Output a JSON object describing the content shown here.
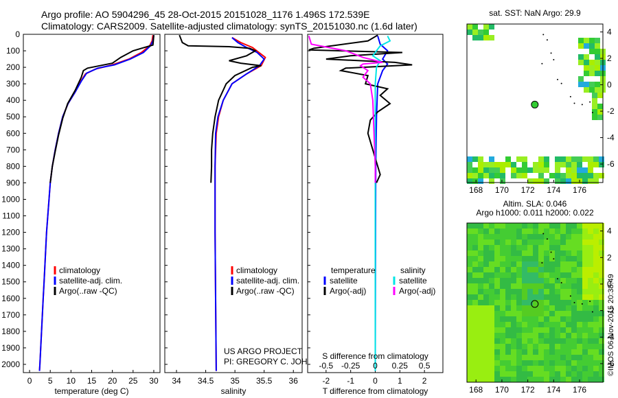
{
  "header": {
    "line1": "Argo profile: AO 5904296_45 28-Oct-2015 20151028_1176 1.496S 172.539E",
    "line2": "Climatology: CARS2009. Satellite-adjusted climatology: synTS_20151030.nc (1.6d later)"
  },
  "colors": {
    "climatology": "#ff0000",
    "satellite": "#0000ff",
    "argo": "#000000",
    "sal_satellite": "#00e5e5",
    "sal_argo": "#ff00ff"
  },
  "depth_axis": {
    "range": [
      0,
      2050
    ],
    "ticks": [
      0,
      100,
      200,
      300,
      400,
      500,
      600,
      700,
      800,
      900,
      1000,
      1100,
      1200,
      1300,
      1400,
      1500,
      1600,
      1700,
      1800,
      1900,
      2000
    ]
  },
  "chart_data": [
    {
      "type": "line",
      "id": "temperature",
      "xlabel": "temperature (deg C)",
      "xlim": [
        -1.5,
        31.5
      ],
      "xticks": [
        0,
        5,
        10,
        15,
        20,
        25,
        30
      ],
      "legend": [
        "climatology",
        "satellite-adj. clim.",
        "Argo(..raw -QC)"
      ],
      "series": [
        {
          "name": "climatology",
          "color_key": "climatology",
          "points": [
            [
              29.8,
              5
            ],
            [
              29.6,
              40
            ],
            [
              29,
              70
            ],
            [
              27,
              110
            ],
            [
              24,
              150
            ],
            [
              20,
              185
            ],
            [
              16,
              210
            ],
            [
              13.5,
              240
            ],
            [
              12.5,
              280
            ],
            [
              11,
              350
            ],
            [
              9.3,
              420
            ],
            [
              8,
              500
            ],
            [
              7,
              600
            ],
            [
              6.2,
              700
            ],
            [
              5.5,
              800
            ],
            [
              5,
              900
            ],
            [
              4.7,
              1000
            ],
            [
              4.4,
              1100
            ],
            [
              4.1,
              1200
            ],
            [
              3.9,
              1300
            ],
            [
              3.7,
              1400
            ],
            [
              3.5,
              1500
            ],
            [
              3.3,
              1600
            ],
            [
              3.1,
              1700
            ],
            [
              2.9,
              1800
            ],
            [
              2.7,
              1900
            ],
            [
              2.5,
              2000
            ],
            [
              2.4,
              2040
            ]
          ]
        },
        {
          "name": "satellite-adj. clim.",
          "color_key": "satellite",
          "points": [
            [
              30,
              5
            ],
            [
              29.8,
              40
            ],
            [
              29.2,
              70
            ],
            [
              27.5,
              110
            ],
            [
              24.3,
              150
            ],
            [
              20.5,
              185
            ],
            [
              16.5,
              205
            ],
            [
              13.8,
              235
            ],
            [
              12.6,
              280
            ],
            [
              11,
              350
            ],
            [
              9.3,
              420
            ],
            [
              8,
              500
            ],
            [
              7,
              600
            ],
            [
              6.2,
              700
            ],
            [
              5.5,
              800
            ],
            [
              5,
              900
            ],
            [
              4.7,
              1000
            ],
            [
              4.4,
              1100
            ],
            [
              4.1,
              1200
            ],
            [
              3.9,
              1300
            ],
            [
              3.7,
              1400
            ],
            [
              3.5,
              1500
            ],
            [
              3.3,
              1600
            ],
            [
              3.1,
              1700
            ],
            [
              2.9,
              1800
            ],
            [
              2.7,
              1900
            ],
            [
              2.5,
              2000
            ],
            [
              2.4,
              2040
            ]
          ]
        },
        {
          "name": "Argo(..raw -QC)",
          "color_key": "argo",
          "points": [
            [
              30,
              5
            ],
            [
              29.9,
              35
            ],
            [
              29.8,
              65
            ],
            [
              27,
              85
            ],
            [
              25,
              100
            ],
            [
              22,
              140
            ],
            [
              20,
              175
            ],
            [
              17,
              190
            ],
            [
              14,
              205
            ],
            [
              13,
              220
            ],
            [
              12.5,
              260
            ],
            [
              11,
              340
            ],
            [
              9.2,
              420
            ],
            [
              8,
              510
            ],
            [
              7,
              610
            ],
            [
              6.2,
              710
            ],
            [
              5.5,
              800
            ],
            [
              5,
              900
            ]
          ]
        }
      ]
    },
    {
      "type": "line",
      "id": "salinity",
      "xlabel": "salinity",
      "xlim": [
        33.8,
        36.15
      ],
      "xticks": [
        34,
        34.5,
        35,
        35.5,
        36
      ],
      "legend": [
        "climatology",
        "satellite-adj. clim.",
        "Argo(..raw -QC)"
      ],
      "credit": [
        "US ARGO PROJECT",
        "PI: GREGORY C. JOHNSON"
      ],
      "series": [
        {
          "name": "climatology",
          "color_key": "climatology",
          "points": [
            [
              34.95,
              20
            ],
            [
              35.1,
              50
            ],
            [
              35.3,
              80
            ],
            [
              35.52,
              140
            ],
            [
              35.45,
              190
            ],
            [
              35.2,
              240
            ],
            [
              34.95,
              300
            ],
            [
              34.8,
              400
            ],
            [
              34.72,
              500
            ],
            [
              34.68,
              600
            ],
            [
              34.66,
              800
            ],
            [
              34.66,
              1200
            ],
            [
              34.67,
              1600
            ],
            [
              34.68,
              2040
            ]
          ]
        },
        {
          "name": "satellite-adj. clim.",
          "color_key": "satellite",
          "points": [
            [
              34.95,
              20
            ],
            [
              35.05,
              50
            ],
            [
              35.2,
              80
            ],
            [
              35.38,
              110
            ],
            [
              35.5,
              150
            ],
            [
              35.42,
              190
            ],
            [
              35.2,
              240
            ],
            [
              34.95,
              300
            ],
            [
              34.8,
              400
            ],
            [
              34.71,
              500
            ],
            [
              34.67,
              600
            ],
            [
              34.66,
              800
            ],
            [
              34.66,
              1200
            ],
            [
              34.67,
              1600
            ],
            [
              34.68,
              2040
            ]
          ]
        },
        {
          "name": "Argo(..raw -QC)",
          "color_key": "argo",
          "points": [
            [
              34.05,
              5
            ],
            [
              34.1,
              50
            ],
            [
              34.2,
              70
            ],
            [
              34.9,
              75
            ],
            [
              35.25,
              85
            ],
            [
              35.35,
              100
            ],
            [
              35.2,
              130
            ],
            [
              34.9,
              160
            ],
            [
              35.1,
              175
            ],
            [
              35.45,
              190
            ],
            [
              35.3,
              200
            ],
            [
              35.0,
              250
            ],
            [
              34.85,
              300
            ],
            [
              34.72,
              400
            ],
            [
              34.66,
              500
            ],
            [
              34.62,
              600
            ],
            [
              34.6,
              700
            ],
            [
              34.6,
              800
            ],
            [
              34.59,
              900
            ]
          ]
        }
      ]
    },
    {
      "type": "line",
      "id": "difference",
      "xlabel": "T difference from climatology",
      "xlabel_top": "S difference from climatology",
      "xlim": [
        -2.75,
        2.75
      ],
      "xticks": [
        -2,
        -1,
        0,
        1,
        2
      ],
      "xticks_top": [
        -0.5,
        -0.25,
        0,
        0.25,
        0.5
      ],
      "legend_col1": [
        "temperature",
        "satellite",
        "Argo(-adj)"
      ],
      "legend_col2": [
        "salinity",
        "satellite",
        "Argo(-adj)"
      ],
      "series": [
        {
          "name": "T satellite",
          "color_key": "satellite",
          "points": [
            [
              0.1,
              10
            ],
            [
              0.2,
              60
            ],
            [
              0.5,
              100
            ],
            [
              0.3,
              150
            ],
            [
              0.5,
              180
            ],
            [
              0.3,
              220
            ],
            [
              0.1,
              300
            ],
            [
              0.05,
              500
            ],
            [
              0.02,
              800
            ],
            [
              0.01,
              1200
            ],
            [
              0,
              2040
            ]
          ]
        },
        {
          "name": "T Argo(-adj)",
          "color_key": "argo",
          "points": [
            [
              0.1,
              5
            ],
            [
              -0.3,
              40
            ],
            [
              -2.5,
              85
            ],
            [
              -2.7,
              95
            ],
            [
              1.1,
              110
            ],
            [
              -1.0,
              130
            ],
            [
              -2.0,
              150
            ],
            [
              0.8,
              170
            ],
            [
              1.5,
              185
            ],
            [
              -1.2,
              205
            ],
            [
              -1.4,
              220
            ],
            [
              -0.3,
              250
            ],
            [
              -0.4,
              300
            ],
            [
              0.5,
              330
            ],
            [
              0.2,
              370
            ],
            [
              0.6,
              420
            ],
            [
              0.1,
              470
            ],
            [
              -0.2,
              520
            ],
            [
              -0.3,
              600
            ],
            [
              -0.1,
              700
            ],
            [
              0.1,
              800
            ],
            [
              0.2,
              850
            ],
            [
              0.05,
              900
            ]
          ]
        },
        {
          "name": "S satellite",
          "color_key": "sal_satellite",
          "points": [
            [
              0.5,
              10
            ],
            [
              0.6,
              40
            ],
            [
              0.2,
              70
            ],
            [
              -0.1,
              130
            ],
            [
              0.2,
              160
            ],
            [
              0.05,
              200
            ],
            [
              0,
              300
            ],
            [
              0,
              2040
            ]
          ]
        },
        {
          "name": "S Argo(-adj)",
          "color_key": "sal_argo",
          "points": [
            [
              -2.7,
              10
            ],
            [
              -2.6,
              60
            ],
            [
              -1.2,
              100
            ],
            [
              -0.5,
              140
            ],
            [
              0.3,
              170
            ],
            [
              -0.5,
              180
            ],
            [
              -0.6,
              190
            ],
            [
              -0.3,
              220
            ],
            [
              -0.5,
              260
            ],
            [
              -0.2,
              300
            ],
            [
              -0.1,
              400
            ],
            [
              -0.05,
              600
            ],
            [
              0,
              800
            ],
            [
              0,
              900
            ]
          ]
        }
      ]
    },
    {
      "type": "heatmap",
      "id": "sst_map",
      "title": "sat. SST: NaN Argo: 29.9",
      "xlim": [
        167.3,
        177.8
      ],
      "ylim": [
        -7.4,
        4.6
      ],
      "xticks": [
        168,
        170,
        172,
        174,
        176
      ],
      "yticks": [
        4,
        2,
        0,
        -2,
        -4,
        -6
      ],
      "argo_position": [
        172.54,
        -1.5
      ]
    },
    {
      "type": "heatmap",
      "id": "sla_map",
      "title_line1": "Altim. SLA: 0.046",
      "title_line2": "Argo h1000: 0.011 h2000: 0.022",
      "xlim": [
        167.3,
        177.8
      ],
      "ylim": [
        -7.4,
        4.6
      ],
      "xticks": [
        168,
        170,
        172,
        174,
        176
      ],
      "yticks": [
        4,
        2,
        0,
        -2,
        -4,
        -6
      ],
      "argo_position": [
        172.54,
        -1.5
      ]
    }
  ],
  "footer": {
    "imos_stamp": "©IMOS 06-Nov-2015 20:38:49"
  }
}
